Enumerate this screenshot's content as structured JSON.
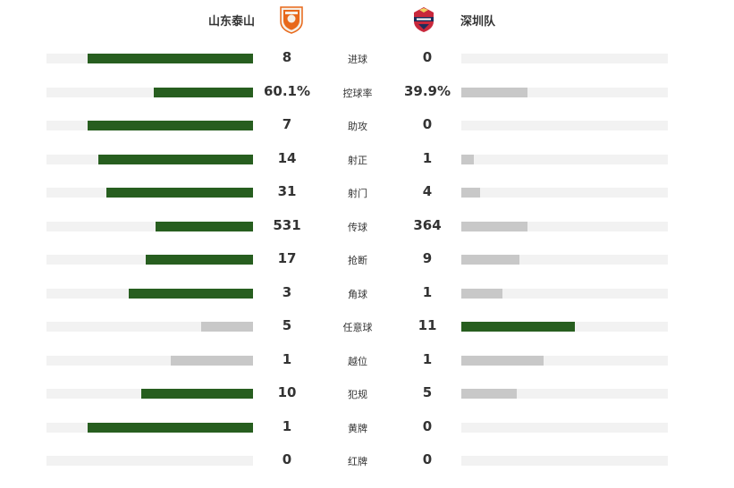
{
  "header": {
    "home_team": "山东泰山",
    "away_team": "深圳队",
    "home_logo_icon": "shandong-taishan-crest-icon",
    "away_logo_icon": "shenzhen-fc-crest-icon"
  },
  "colors": {
    "winner": "#275e1f",
    "loser": "#c8c8c8",
    "track": "#f2f2f2",
    "home_logo": "#e8681a",
    "away_logo": "#c8283c"
  },
  "stats": [
    {
      "label": "进球",
      "home": "8",
      "away": "0",
      "home_share": 0.8,
      "away_share": 0.0,
      "home_lead": true,
      "away_lead": false
    },
    {
      "label": "控球率",
      "home": "60.1%",
      "away": "39.9%",
      "home_share": 0.48,
      "away_share": 0.32,
      "home_lead": true,
      "away_lead": false
    },
    {
      "label": "助攻",
      "home": "7",
      "away": "0",
      "home_share": 0.8,
      "away_share": 0.0,
      "home_lead": true,
      "away_lead": false
    },
    {
      "label": "射正",
      "home": "14",
      "away": "1",
      "home_share": 0.75,
      "away_share": 0.06,
      "home_lead": true,
      "away_lead": false
    },
    {
      "label": "射门",
      "home": "31",
      "away": "4",
      "home_share": 0.71,
      "away_share": 0.09,
      "home_lead": true,
      "away_lead": false
    },
    {
      "label": "传球",
      "home": "531",
      "away": "364",
      "home_share": 0.47,
      "away_share": 0.32,
      "home_lead": true,
      "away_lead": false
    },
    {
      "label": "抢断",
      "home": "17",
      "away": "9",
      "home_share": 0.52,
      "away_share": 0.28,
      "home_lead": true,
      "away_lead": false
    },
    {
      "label": "角球",
      "home": "3",
      "away": "1",
      "home_share": 0.6,
      "away_share": 0.2,
      "home_lead": true,
      "away_lead": false
    },
    {
      "label": "任意球",
      "home": "5",
      "away": "11",
      "home_share": 0.25,
      "away_share": 0.55,
      "home_lead": false,
      "away_lead": true
    },
    {
      "label": "越位",
      "home": "1",
      "away": "1",
      "home_share": 0.4,
      "away_share": 0.4,
      "home_lead": false,
      "away_lead": false
    },
    {
      "label": "犯规",
      "home": "10",
      "away": "5",
      "home_share": 0.54,
      "away_share": 0.27,
      "home_lead": true,
      "away_lead": false
    },
    {
      "label": "黄牌",
      "home": "1",
      "away": "0",
      "home_share": 0.8,
      "away_share": 0.0,
      "home_lead": true,
      "away_lead": false
    },
    {
      "label": "红牌",
      "home": "0",
      "away": "0",
      "home_share": 0.0,
      "away_share": 0.0,
      "home_lead": false,
      "away_lead": false
    }
  ]
}
